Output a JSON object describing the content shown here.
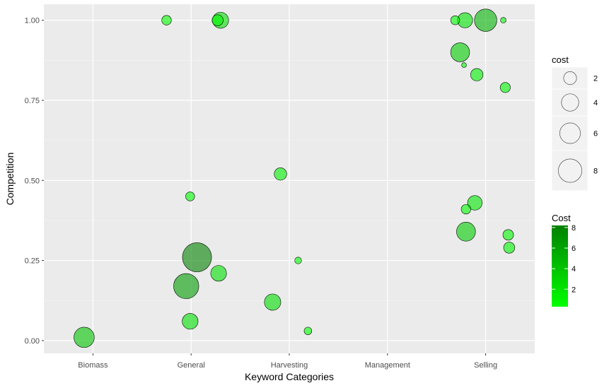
{
  "chart_data": {
    "type": "scatter",
    "title": "",
    "xlabel": "Keyword Categories",
    "ylabel": "Competition",
    "categories": [
      "Biomass",
      "General",
      "Harvesting",
      "Management",
      "Selling"
    ],
    "yticks": [
      "0.00",
      "0.25",
      "0.50",
      "0.75",
      "1.00"
    ],
    "ylim": [
      -0.04,
      1.05
    ],
    "grid": true,
    "size_legend": {
      "title": "cost",
      "values": [
        2,
        4,
        6,
        8
      ],
      "labels": [
        "2",
        "4",
        "6",
        "8"
      ]
    },
    "color_legend": {
      "title": "Cost",
      "range": [
        0.3,
        8.2
      ],
      "ticks": [
        2,
        4,
        6,
        8
      ],
      "labels": [
        "2",
        "4",
        "6",
        "8"
      ],
      "low_color": "#00ff00",
      "high_color": "#008000"
    },
    "points": [
      {
        "category": "Biomass",
        "offset": -0.09,
        "y": 0.01,
        "cost": 4.0
      },
      {
        "category": "General",
        "offset": -0.25,
        "y": 1.0,
        "cost": 0.6
      },
      {
        "category": "General",
        "offset": 0.3,
        "y": 1.0,
        "cost": 2.3
      },
      {
        "category": "General",
        "offset": 0.27,
        "y": 1.0,
        "cost": 0.9
      },
      {
        "category": "General",
        "offset": -0.01,
        "y": 0.45,
        "cost": 0.5
      },
      {
        "category": "General",
        "offset": 0.06,
        "y": 0.26,
        "cost": 9.0
      },
      {
        "category": "General",
        "offset": 0.28,
        "y": 0.21,
        "cost": 2.2
      },
      {
        "category": "General",
        "offset": -0.05,
        "y": 0.17,
        "cost": 6.5
      },
      {
        "category": "General",
        "offset": -0.01,
        "y": 0.06,
        "cost": 2.2
      },
      {
        "category": "Harvesting",
        "offset": -0.09,
        "y": 0.52,
        "cost": 1.2
      },
      {
        "category": "Harvesting",
        "offset": 0.09,
        "y": 0.25,
        "cost": 0.2
      },
      {
        "category": "Harvesting",
        "offset": -0.17,
        "y": 0.12,
        "cost": 2.4
      },
      {
        "category": "Harvesting",
        "offset": 0.19,
        "y": 0.03,
        "cost": 0.3
      },
      {
        "category": "Selling",
        "offset": -0.31,
        "y": 1.0,
        "cost": 0.5
      },
      {
        "category": "Selling",
        "offset": -0.21,
        "y": 1.0,
        "cost": 2.0
      },
      {
        "category": "Selling",
        "offset": 0.0,
        "y": 1.0,
        "cost": 5.0
      },
      {
        "category": "Selling",
        "offset": 0.18,
        "y": 1.0,
        "cost": 0.1
      },
      {
        "category": "Selling",
        "offset": -0.26,
        "y": 0.9,
        "cost": 3.4
      },
      {
        "category": "Selling",
        "offset": -0.22,
        "y": 0.86,
        "cost": 0.05
      },
      {
        "category": "Selling",
        "offset": -0.09,
        "y": 0.83,
        "cost": 1.2
      },
      {
        "category": "Selling",
        "offset": 0.2,
        "y": 0.79,
        "cost": 0.7
      },
      {
        "category": "Selling",
        "offset": -0.11,
        "y": 0.43,
        "cost": 1.8
      },
      {
        "category": "Selling",
        "offset": -0.2,
        "y": 0.41,
        "cost": 0.6
      },
      {
        "category": "Selling",
        "offset": -0.2,
        "y": 0.34,
        "cost": 3.4
      },
      {
        "category": "Selling",
        "offset": 0.23,
        "y": 0.33,
        "cost": 0.8
      },
      {
        "category": "Selling",
        "offset": 0.24,
        "y": 0.29,
        "cost": 0.9
      }
    ]
  }
}
